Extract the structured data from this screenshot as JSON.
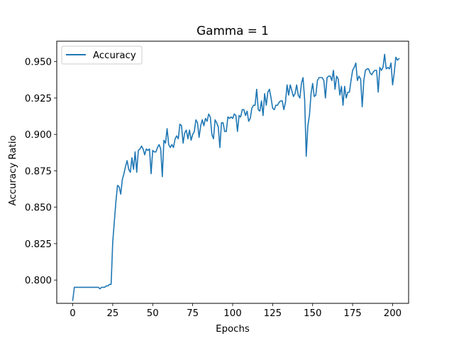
{
  "chart_data": {
    "type": "line",
    "title": "Gamma = 1",
    "xlabel": "Epochs",
    "ylabel": "Accuracy Ratio",
    "xlim": [
      -10,
      210
    ],
    "ylim": [
      0.784,
      0.964
    ],
    "x_ticks": [
      0,
      25,
      50,
      75,
      100,
      125,
      150,
      175,
      200
    ],
    "x_tick_labels": [
      "0",
      "25",
      "50",
      "75",
      "100",
      "125",
      "150",
      "175",
      "200"
    ],
    "y_ticks": [
      0.8,
      0.825,
      0.85,
      0.875,
      0.9,
      0.925,
      0.95
    ],
    "y_tick_labels": [
      "0.800",
      "0.825",
      "0.850",
      "0.875",
      "0.900",
      "0.925",
      "0.950"
    ],
    "grid": false,
    "legend_position": "top-left",
    "series": [
      {
        "name": "Accuracy",
        "color": "#1f77b4",
        "x_start": 0,
        "x_step": 1,
        "values": [
          0.786,
          0.795,
          0.795,
          0.795,
          0.795,
          0.795,
          0.795,
          0.795,
          0.795,
          0.795,
          0.795,
          0.795,
          0.795,
          0.795,
          0.795,
          0.795,
          0.795,
          0.794,
          0.795,
          0.795,
          0.795,
          0.796,
          0.796,
          0.797,
          0.797,
          0.826,
          0.84,
          0.854,
          0.865,
          0.864,
          0.859,
          0.869,
          0.873,
          0.878,
          0.882,
          0.876,
          0.874,
          0.884,
          0.876,
          0.888,
          0.874,
          0.889,
          0.89,
          0.892,
          0.89,
          0.886,
          0.89,
          0.889,
          0.89,
          0.873,
          0.889,
          0.888,
          0.888,
          0.891,
          0.893,
          0.89,
          0.871,
          0.896,
          0.894,
          0.904,
          0.893,
          0.891,
          0.893,
          0.891,
          0.897,
          0.899,
          0.897,
          0.907,
          0.906,
          0.894,
          0.901,
          0.903,
          0.897,
          0.903,
          0.896,
          0.9,
          0.902,
          0.91,
          0.908,
          0.898,
          0.906,
          0.91,
          0.906,
          0.911,
          0.909,
          0.914,
          0.912,
          0.9,
          0.897,
          0.91,
          0.908,
          0.905,
          0.891,
          0.908,
          0.908,
          0.902,
          0.902,
          0.912,
          0.911,
          0.912,
          0.911,
          0.914,
          0.913,
          0.902,
          0.913,
          0.912,
          0.917,
          0.917,
          0.913,
          0.916,
          0.909,
          0.911,
          0.918,
          0.92,
          0.92,
          0.931,
          0.917,
          0.916,
          0.923,
          0.913,
          0.928,
          0.92,
          0.929,
          0.931,
          0.925,
          0.918,
          0.917,
          0.92,
          0.92,
          0.922,
          0.923,
          0.923,
          0.917,
          0.922,
          0.934,
          0.927,
          0.934,
          0.93,
          0.926,
          0.928,
          0.934,
          0.927,
          0.925,
          0.935,
          0.939,
          0.924,
          0.885,
          0.906,
          0.913,
          0.928,
          0.935,
          0.926,
          0.927,
          0.937,
          0.939,
          0.939,
          0.939,
          0.937,
          0.925,
          0.939,
          0.94,
          0.94,
          0.937,
          0.944,
          0.931,
          0.94,
          0.938,
          0.927,
          0.933,
          0.92,
          0.933,
          0.925,
          0.929,
          0.929,
          0.937,
          0.944,
          0.946,
          0.949,
          0.937,
          0.94,
          0.938,
          0.919,
          0.937,
          0.944,
          0.945,
          0.945,
          0.942,
          0.941,
          0.943,
          0.944,
          0.944,
          0.929,
          0.946,
          0.944,
          0.946,
          0.955,
          0.945,
          0.946,
          0.945,
          0.949,
          0.934,
          0.942,
          0.953,
          0.951,
          0.952
        ]
      }
    ]
  }
}
